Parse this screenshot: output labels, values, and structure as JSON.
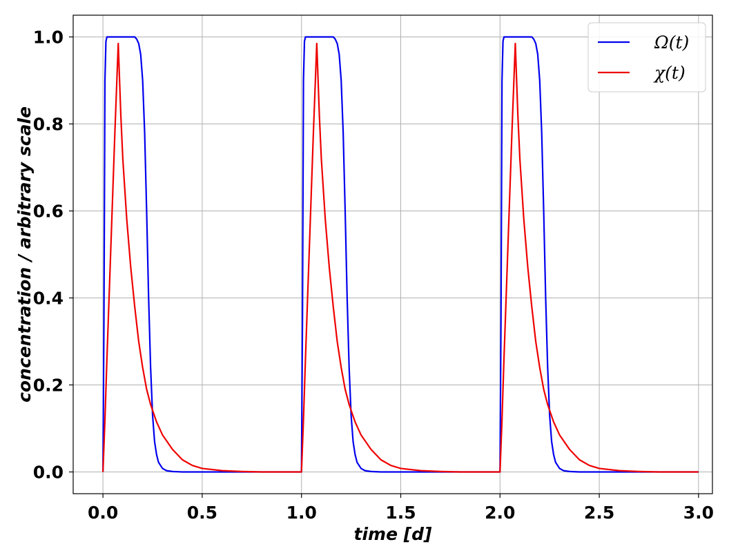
{
  "chart_data": {
    "type": "line",
    "title": "",
    "xlabel": "time [d]",
    "ylabel": "concentration / arbitrary scale",
    "xlim": [
      -0.15,
      3.07
    ],
    "ylim": [
      -0.05,
      1.05
    ],
    "xticks": [
      0.0,
      0.5,
      1.0,
      1.5,
      2.0,
      2.5,
      3.0
    ],
    "xtick_labels": [
      "0.0",
      "0.5",
      "1.0",
      "1.5",
      "2.0",
      "2.5",
      "3.0"
    ],
    "yticks": [
      0.0,
      0.2,
      0.4,
      0.6,
      0.8,
      1.0
    ],
    "ytick_labels": [
      "0.0",
      "0.2",
      "0.4",
      "0.6",
      "0.8",
      "1.0"
    ],
    "grid": true,
    "legend_position": "top-right",
    "series": [
      {
        "name": "Ω(t)",
        "color": "#0000ee",
        "x": [
          0.0,
          0.005,
          0.01,
          0.015,
          0.02,
          0.03,
          0.16,
          0.17,
          0.18,
          0.19,
          0.2,
          0.21,
          0.22,
          0.23,
          0.24,
          0.25,
          0.26,
          0.27,
          0.28,
          0.3,
          0.32,
          0.35,
          0.4,
          0.5,
          1.0,
          1.005,
          1.01,
          1.015,
          1.02,
          1.03,
          1.16,
          1.17,
          1.18,
          1.19,
          1.2,
          1.21,
          1.22,
          1.23,
          1.24,
          1.25,
          1.26,
          1.27,
          1.28,
          1.3,
          1.32,
          1.35,
          1.4,
          1.5,
          2.0,
          2.005,
          2.01,
          2.015,
          2.02,
          2.03,
          2.16,
          2.17,
          2.18,
          2.19,
          2.2,
          2.21,
          2.22,
          2.23,
          2.24,
          2.25,
          2.26,
          2.27,
          2.28,
          2.3,
          2.32,
          2.35,
          2.4,
          2.5,
          3.0
        ],
        "values": [
          0.0,
          0.35,
          0.9,
          0.99,
          1.0,
          1.0,
          1.0,
          0.995,
          0.985,
          0.96,
          0.9,
          0.78,
          0.6,
          0.4,
          0.24,
          0.13,
          0.07,
          0.04,
          0.022,
          0.008,
          0.003,
          0.001,
          0.0,
          0.0,
          0.0,
          0.35,
          0.9,
          0.99,
          1.0,
          1.0,
          1.0,
          0.995,
          0.985,
          0.96,
          0.9,
          0.78,
          0.6,
          0.4,
          0.24,
          0.13,
          0.07,
          0.04,
          0.022,
          0.008,
          0.003,
          0.001,
          0.0,
          0.0,
          0.0,
          0.35,
          0.9,
          0.99,
          1.0,
          1.0,
          1.0,
          0.995,
          0.985,
          0.96,
          0.9,
          0.78,
          0.6,
          0.4,
          0.24,
          0.13,
          0.07,
          0.04,
          0.022,
          0.008,
          0.003,
          0.001,
          0.0,
          0.0,
          0.0
        ]
      },
      {
        "name": "χ(t)",
        "color": "#ee0000",
        "x": [
          0.0,
          0.01,
          0.02,
          0.03,
          0.04,
          0.05,
          0.06,
          0.07,
          0.077,
          0.09,
          0.1,
          0.12,
          0.14,
          0.16,
          0.18,
          0.2,
          0.22,
          0.24,
          0.27,
          0.3,
          0.35,
          0.4,
          0.45,
          0.5,
          0.6,
          0.7,
          0.8,
          1.0,
          1.01,
          1.02,
          1.03,
          1.04,
          1.05,
          1.06,
          1.07,
          1.077,
          1.09,
          1.1,
          1.12,
          1.14,
          1.16,
          1.18,
          1.2,
          1.22,
          1.24,
          1.27,
          1.3,
          1.35,
          1.4,
          1.45,
          1.5,
          1.6,
          1.7,
          1.8,
          2.0,
          2.01,
          2.02,
          2.03,
          2.04,
          2.05,
          2.06,
          2.07,
          2.077,
          2.09,
          2.1,
          2.12,
          2.14,
          2.16,
          2.18,
          2.2,
          2.22,
          2.24,
          2.27,
          2.3,
          2.35,
          2.4,
          2.45,
          2.5,
          2.6,
          2.7,
          2.8,
          3.0
        ],
        "values": [
          0.0,
          0.12,
          0.26,
          0.39,
          0.52,
          0.65,
          0.78,
          0.9,
          0.985,
          0.82,
          0.72,
          0.58,
          0.47,
          0.38,
          0.3,
          0.24,
          0.19,
          0.155,
          0.115,
          0.085,
          0.052,
          0.028,
          0.015,
          0.008,
          0.003,
          0.001,
          0.0,
          0.0,
          0.12,
          0.26,
          0.39,
          0.52,
          0.65,
          0.78,
          0.9,
          0.985,
          0.82,
          0.72,
          0.58,
          0.47,
          0.38,
          0.3,
          0.24,
          0.19,
          0.155,
          0.115,
          0.085,
          0.052,
          0.028,
          0.015,
          0.008,
          0.003,
          0.001,
          0.0,
          0.0,
          0.12,
          0.26,
          0.39,
          0.52,
          0.65,
          0.78,
          0.9,
          0.985,
          0.82,
          0.72,
          0.58,
          0.47,
          0.38,
          0.3,
          0.24,
          0.19,
          0.155,
          0.115,
          0.085,
          0.052,
          0.028,
          0.015,
          0.008,
          0.003,
          0.001,
          0.0,
          0.0
        ]
      }
    ]
  }
}
